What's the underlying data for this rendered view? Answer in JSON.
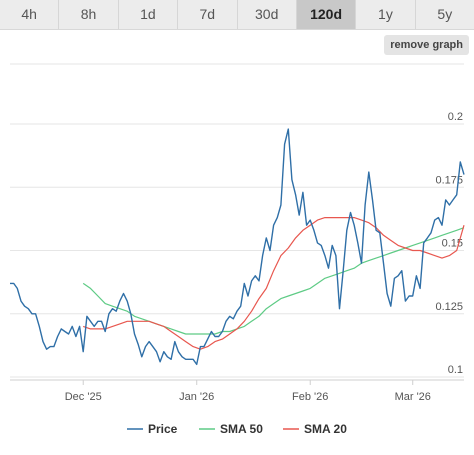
{
  "timeframes": {
    "items": [
      "4h",
      "8h",
      "1d",
      "7d",
      "30d",
      "120d",
      "1y",
      "5y"
    ],
    "active": "120d"
  },
  "remove_graph_label": "remove graph",
  "colors": {
    "price": "#2f6fa7",
    "sma50": "#5ecb85",
    "sma20": "#e8574f",
    "grid": "#e6e6e6"
  },
  "chart_data": {
    "type": "line",
    "title": "",
    "xlabel": "",
    "ylabel": "",
    "ylim": [
      0.1,
      0.2
    ],
    "xlim": [
      0,
      124
    ],
    "y_ticks": [
      {
        "value": 0.1,
        "label": "0.1"
      },
      {
        "value": 0.125,
        "label": "0.125"
      },
      {
        "value": 0.15,
        "label": "0.15"
      },
      {
        "value": 0.175,
        "label": "0.175"
      },
      {
        "value": 0.2,
        "label": "0.2"
      }
    ],
    "x_ticks": [
      {
        "x": 20,
        "label": "Dec '25"
      },
      {
        "x": 51,
        "label": "Jan '26"
      },
      {
        "x": 82,
        "label": "Feb '26"
      },
      {
        "x": 110,
        "label": "Mar '26"
      }
    ],
    "legend_position": "bottom",
    "series": [
      {
        "name": "Price",
        "color_key": "price",
        "points": [
          [
            0,
            0.137
          ],
          [
            1,
            0.137
          ],
          [
            2,
            0.135
          ],
          [
            3,
            0.13
          ],
          [
            4,
            0.128
          ],
          [
            5,
            0.127
          ],
          [
            6,
            0.125
          ],
          [
            7,
            0.125
          ],
          [
            8,
            0.12
          ],
          [
            9,
            0.114
          ],
          [
            10,
            0.111
          ],
          [
            11,
            0.112
          ],
          [
            12,
            0.112
          ],
          [
            13,
            0.116
          ],
          [
            14,
            0.119
          ],
          [
            15,
            0.118
          ],
          [
            16,
            0.117
          ],
          [
            17,
            0.12
          ],
          [
            18,
            0.116
          ],
          [
            19,
            0.12
          ],
          [
            20,
            0.11
          ],
          [
            21,
            0.124
          ],
          [
            22,
            0.122
          ],
          [
            23,
            0.12
          ],
          [
            24,
            0.122
          ],
          [
            25,
            0.122
          ],
          [
            26,
            0.118
          ],
          [
            27,
            0.125
          ],
          [
            28,
            0.127
          ],
          [
            29,
            0.126
          ],
          [
            30,
            0.13
          ],
          [
            31,
            0.133
          ],
          [
            32,
            0.13
          ],
          [
            33,
            0.125
          ],
          [
            34,
            0.117
          ],
          [
            35,
            0.113
          ],
          [
            36,
            0.108
          ],
          [
            37,
            0.112
          ],
          [
            38,
            0.114
          ],
          [
            39,
            0.112
          ],
          [
            40,
            0.11
          ],
          [
            41,
            0.106
          ],
          [
            42,
            0.11
          ],
          [
            43,
            0.108
          ],
          [
            44,
            0.107
          ],
          [
            45,
            0.114
          ],
          [
            46,
            0.11
          ],
          [
            47,
            0.108
          ],
          [
            48,
            0.107
          ],
          [
            49,
            0.107
          ],
          [
            50,
            0.107
          ],
          [
            51,
            0.105
          ],
          [
            52,
            0.112
          ],
          [
            53,
            0.112
          ],
          [
            54,
            0.115
          ],
          [
            55,
            0.118
          ],
          [
            56,
            0.116
          ],
          [
            57,
            0.116
          ],
          [
            58,
            0.118
          ],
          [
            59,
            0.122
          ],
          [
            60,
            0.124
          ],
          [
            61,
            0.123
          ],
          [
            62,
            0.126
          ],
          [
            63,
            0.128
          ],
          [
            64,
            0.137
          ],
          [
            65,
            0.132
          ],
          [
            66,
            0.138
          ],
          [
            67,
            0.14
          ],
          [
            68,
            0.138
          ],
          [
            69,
            0.148
          ],
          [
            70,
            0.155
          ],
          [
            71,
            0.15
          ],
          [
            72,
            0.16
          ],
          [
            73,
            0.163
          ],
          [
            74,
            0.168
          ],
          [
            75,
            0.192
          ],
          [
            76,
            0.198
          ],
          [
            77,
            0.178
          ],
          [
            78,
            0.172
          ],
          [
            79,
            0.164
          ],
          [
            80,
            0.173
          ],
          [
            81,
            0.16
          ],
          [
            82,
            0.162
          ],
          [
            83,
            0.158
          ],
          [
            84,
            0.153
          ],
          [
            85,
            0.152
          ],
          [
            86,
            0.148
          ],
          [
            87,
            0.143
          ],
          [
            88,
            0.152
          ],
          [
            89,
            0.148
          ],
          [
            90,
            0.127
          ],
          [
            91,
            0.142
          ],
          [
            92,
            0.158
          ],
          [
            93,
            0.165
          ],
          [
            94,
            0.16
          ],
          [
            95,
            0.153
          ],
          [
            96,
            0.145
          ],
          [
            97,
            0.168
          ],
          [
            98,
            0.181
          ],
          [
            99,
            0.17
          ],
          [
            100,
            0.158
          ],
          [
            101,
            0.157
          ],
          [
            102,
            0.145
          ],
          [
            103,
            0.133
          ],
          [
            104,
            0.128
          ],
          [
            105,
            0.139
          ],
          [
            106,
            0.14
          ],
          [
            107,
            0.142
          ],
          [
            108,
            0.13
          ],
          [
            109,
            0.132
          ],
          [
            110,
            0.132
          ],
          [
            111,
            0.14
          ],
          [
            112,
            0.135
          ],
          [
            113,
            0.153
          ],
          [
            114,
            0.155
          ],
          [
            115,
            0.157
          ],
          [
            116,
            0.162
          ],
          [
            117,
            0.163
          ],
          [
            118,
            0.16
          ],
          [
            119,
            0.17
          ],
          [
            120,
            0.168
          ],
          [
            121,
            0.17
          ],
          [
            122,
            0.172
          ],
          [
            123,
            0.185
          ],
          [
            124,
            0.18
          ]
        ]
      },
      {
        "name": "SMA 50",
        "color_key": "sma50",
        "points": [
          [
            20,
            0.137
          ],
          [
            22,
            0.135
          ],
          [
            24,
            0.132
          ],
          [
            26,
            0.129
          ],
          [
            28,
            0.128
          ],
          [
            30,
            0.127
          ],
          [
            32,
            0.126
          ],
          [
            34,
            0.124
          ],
          [
            36,
            0.123
          ],
          [
            38,
            0.122
          ],
          [
            40,
            0.121
          ],
          [
            42,
            0.12
          ],
          [
            44,
            0.119
          ],
          [
            46,
            0.118
          ],
          [
            48,
            0.117
          ],
          [
            50,
            0.117
          ],
          [
            52,
            0.117
          ],
          [
            54,
            0.117
          ],
          [
            56,
            0.117
          ],
          [
            58,
            0.118
          ],
          [
            60,
            0.118
          ],
          [
            62,
            0.119
          ],
          [
            64,
            0.12
          ],
          [
            66,
            0.122
          ],
          [
            68,
            0.124
          ],
          [
            70,
            0.127
          ],
          [
            72,
            0.129
          ],
          [
            74,
            0.131
          ],
          [
            76,
            0.132
          ],
          [
            78,
            0.133
          ],
          [
            80,
            0.134
          ],
          [
            82,
            0.135
          ],
          [
            84,
            0.137
          ],
          [
            86,
            0.139
          ],
          [
            88,
            0.14
          ],
          [
            90,
            0.141
          ],
          [
            92,
            0.142
          ],
          [
            94,
            0.143
          ],
          [
            96,
            0.145
          ],
          [
            98,
            0.146
          ],
          [
            100,
            0.147
          ],
          [
            102,
            0.148
          ],
          [
            104,
            0.149
          ],
          [
            106,
            0.15
          ],
          [
            108,
            0.151
          ],
          [
            110,
            0.152
          ],
          [
            112,
            0.153
          ],
          [
            114,
            0.154
          ],
          [
            116,
            0.155
          ],
          [
            118,
            0.156
          ],
          [
            120,
            0.157
          ],
          [
            122,
            0.158
          ],
          [
            124,
            0.159
          ]
        ]
      },
      {
        "name": "SMA 20",
        "color_key": "sma20",
        "points": [
          [
            20,
            0.12
          ],
          [
            22,
            0.119
          ],
          [
            24,
            0.119
          ],
          [
            26,
            0.119
          ],
          [
            28,
            0.12
          ],
          [
            30,
            0.121
          ],
          [
            32,
            0.122
          ],
          [
            34,
            0.122
          ],
          [
            36,
            0.122
          ],
          [
            38,
            0.122
          ],
          [
            40,
            0.121
          ],
          [
            42,
            0.12
          ],
          [
            44,
            0.118
          ],
          [
            46,
            0.116
          ],
          [
            48,
            0.114
          ],
          [
            50,
            0.112
          ],
          [
            52,
            0.111
          ],
          [
            54,
            0.112
          ],
          [
            56,
            0.114
          ],
          [
            58,
            0.115
          ],
          [
            60,
            0.117
          ],
          [
            62,
            0.119
          ],
          [
            64,
            0.122
          ],
          [
            66,
            0.126
          ],
          [
            68,
            0.131
          ],
          [
            70,
            0.135
          ],
          [
            72,
            0.142
          ],
          [
            74,
            0.148
          ],
          [
            76,
            0.151
          ],
          [
            78,
            0.155
          ],
          [
            80,
            0.158
          ],
          [
            82,
            0.16
          ],
          [
            84,
            0.162
          ],
          [
            86,
            0.163
          ],
          [
            88,
            0.163
          ],
          [
            90,
            0.163
          ],
          [
            92,
            0.163
          ],
          [
            94,
            0.163
          ],
          [
            96,
            0.162
          ],
          [
            98,
            0.161
          ],
          [
            100,
            0.159
          ],
          [
            102,
            0.156
          ],
          [
            104,
            0.154
          ],
          [
            106,
            0.152
          ],
          [
            108,
            0.151
          ],
          [
            110,
            0.15
          ],
          [
            112,
            0.15
          ],
          [
            114,
            0.149
          ],
          [
            116,
            0.148
          ],
          [
            118,
            0.147
          ],
          [
            120,
            0.148
          ],
          [
            122,
            0.15
          ],
          [
            124,
            0.16
          ]
        ]
      }
    ]
  }
}
